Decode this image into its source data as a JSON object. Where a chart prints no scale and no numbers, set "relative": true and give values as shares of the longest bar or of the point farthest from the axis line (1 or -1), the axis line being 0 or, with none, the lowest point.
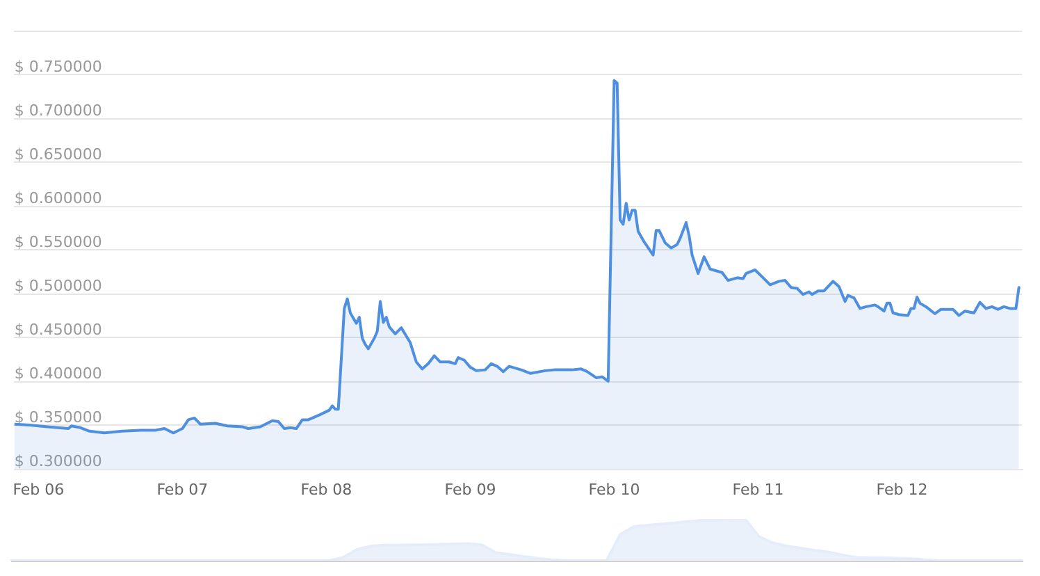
{
  "chart_data": [
    {
      "type": "area",
      "x": [
        "--02-05T20:00",
        "--02-05T22:30",
        "--02-06T01:30",
        "--02-06T05:00",
        "--02-06T05:30",
        "--02-06T07:00",
        "--02-06T08:30",
        "--02-06T11:00",
        "--02-06T14:00",
        "--02-06T17:00",
        "--02-06T19:30",
        "--02-06T21:00",
        "--02-06T22:30",
        "--02-07T00:00",
        "--02-07T01:00",
        "--02-07T02:00",
        "--02-07T03:00",
        "--02-07T05:30",
        "--02-07T07:30",
        "--02-07T10:00",
        "--02-07T11:00",
        "--02-07T13:00",
        "--02-07T15:00",
        "--02-07T16:00",
        "--02-07T17:00",
        "--02-07T18:00",
        "--02-07T19:00",
        "--02-07T20:00",
        "--02-07T21:00",
        "--02-07T23:00",
        "--02-08T00:30",
        "--02-08T01:00",
        "--02-08T01:30",
        "--02-08T02:00",
        "--02-08T03:00",
        "--02-08T03:30",
        "--02-08T04:00",
        "--02-08T05:00",
        "--02-08T05:30",
        "--02-08T06:00",
        "--02-08T06:30",
        "--02-08T07:00",
        "--02-08T08:00",
        "--02-08T08:30",
        "--02-08T09:00",
        "--02-08T09:30",
        "--02-08T10:00",
        "--02-08T10:30",
        "--02-08T11:30",
        "--02-08T12:30",
        "--02-08T14:00",
        "--02-08T15:00",
        "--02-08T16:00",
        "--02-08T17:00",
        "--02-08T18:00",
        "--02-08T19:00",
        "--02-08T20:30",
        "--02-08T21:30",
        "--02-08T22:00",
        "--02-08T23:00",
        "--02-09T00:00",
        "--02-09T01:00",
        "--02-09T02:30",
        "--02-09T03:30",
        "--02-09T04:30",
        "--02-09T05:30",
        "--02-09T06:30",
        "--02-09T08:30",
        "--02-09T10:00",
        "--02-09T12:30",
        "--02-09T14:00",
        "--02-09T17:00",
        "--02-09T18:30",
        "--02-09T19:30",
        "--02-09T21:00",
        "--02-09T22:00",
        "--02-09T23:00",
        "--02-10T00:00",
        "--02-10T00:30",
        "--02-10T01:00",
        "--02-10T01:30",
        "--02-10T02:00",
        "--02-10T02:30",
        "--02-10T03:00",
        "--02-10T03:30",
        "--02-10T04:00",
        "--02-10T05:00",
        "--02-10T06:30",
        "--02-10T07:00",
        "--02-10T07:30",
        "--02-10T08:30",
        "--02-10T09:30",
        "--02-10T10:30",
        "--02-10T11:00",
        "--02-10T12:00",
        "--02-10T12:30",
        "--02-10T13:00",
        "--02-10T14:00",
        "--02-10T15:00",
        "--02-10T16:00",
        "--02-10T17:00",
        "--02-10T18:00",
        "--02-10T19:00",
        "--02-10T20:30",
        "--02-10T21:30",
        "--02-10T22:00",
        "--02-10T23:30",
        "--02-11T01:00",
        "--02-11T02:00",
        "--02-11T03:30",
        "--02-11T04:30",
        "--02-11T05:30",
        "--02-11T06:30",
        "--02-11T07:30",
        "--02-11T08:30",
        "--02-11T09:00",
        "--02-11T10:00",
        "--02-11T11:00",
        "--02-11T12:30",
        "--02-11T13:30",
        "--02-11T14:30",
        "--02-11T15:00",
        "--02-11T16:00",
        "--02-11T17:00",
        "--02-11T18:00",
        "--02-11T19:30",
        "--02-11T20:00",
        "--02-11T21:00",
        "--02-11T21:30",
        "--02-11T22:00",
        "--02-11T22:30",
        "--02-11T23:30",
        "--02-12T01:00",
        "--02-12T01:30",
        "--02-12T02:00",
        "--02-12T02:30",
        "--02-12T03:00",
        "--02-12T04:00",
        "--02-12T05:30",
        "--02-12T06:30",
        "--02-12T08:30",
        "--02-12T09:30",
        "--02-12T10:30",
        "--02-12T12:00",
        "--02-12T13:00",
        "--02-12T14:00",
        "--02-12T15:00",
        "--02-12T16:00",
        "--02-12T17:00",
        "--02-12T18:00",
        "--02-12T19:00",
        "--02-12T19:30"
      ],
      "values": [
        0.351,
        0.35,
        0.348,
        0.346,
        0.349,
        0.347,
        0.343,
        0.341,
        0.343,
        0.344,
        0.344,
        0.346,
        0.341,
        0.346,
        0.356,
        0.358,
        0.351,
        0.352,
        0.349,
        0.348,
        0.346,
        0.348,
        0.355,
        0.354,
        0.346,
        0.347,
        0.346,
        0.356,
        0.356,
        0.362,
        0.367,
        0.372,
        0.368,
        0.368,
        0.483,
        0.494,
        0.478,
        0.466,
        0.473,
        0.449,
        0.442,
        0.437,
        0.449,
        0.457,
        0.491,
        0.467,
        0.473,
        0.462,
        0.454,
        0.461,
        0.444,
        0.422,
        0.414,
        0.42,
        0.429,
        0.422,
        0.422,
        0.42,
        0.427,
        0.424,
        0.416,
        0.412,
        0.413,
        0.42,
        0.417,
        0.411,
        0.417,
        0.413,
        0.409,
        0.412,
        0.413,
        0.413,
        0.414,
        0.411,
        0.404,
        0.405,
        0.4,
        0.743,
        0.74,
        0.584,
        0.579,
        0.603,
        0.584,
        0.595,
        0.595,
        0.571,
        0.559,
        0.544,
        0.572,
        0.572,
        0.558,
        0.552,
        0.556,
        0.563,
        0.581,
        0.566,
        0.544,
        0.523,
        0.542,
        0.528,
        0.526,
        0.524,
        0.515,
        0.518,
        0.517,
        0.523,
        0.527,
        0.517,
        0.51,
        0.514,
        0.515,
        0.507,
        0.506,
        0.499,
        0.502,
        0.499,
        0.503,
        0.503,
        0.514,
        0.508,
        0.491,
        0.498,
        0.495,
        0.483,
        0.485,
        0.487,
        0.485,
        0.48,
        0.489,
        0.489,
        0.478,
        0.476,
        0.475,
        0.483,
        0.483,
        0.496,
        0.489,
        0.485,
        0.477,
        0.482,
        0.482,
        0.475,
        0.48,
        0.478,
        0.49,
        0.483,
        0.485,
        0.482,
        0.485,
        0.483,
        0.483,
        0.507
      ],
      "color": "#4f8fe0",
      "xlim": [
        "--02-05T20:00",
        "--02-12T20:00"
      ],
      "xticks": [
        {
          "value": "--02-06",
          "label": "Feb 06"
        },
        {
          "value": "--02-07",
          "label": "Feb 07"
        },
        {
          "value": "--02-08",
          "label": "Feb 08"
        },
        {
          "value": "--02-09",
          "label": "Feb 09"
        },
        {
          "value": "--02-10",
          "label": "Feb 10"
        },
        {
          "value": "--02-11",
          "label": "Feb 11"
        },
        {
          "value": "--02-12",
          "label": "Feb 12"
        }
      ],
      "ylim": [
        0.3,
        0.8
      ],
      "yticks": [
        {
          "value": 0.3,
          "label": "$ 0.300000"
        },
        {
          "value": 0.35,
          "label": "$ 0.350000"
        },
        {
          "value": 0.4,
          "label": "$ 0.400000"
        },
        {
          "value": 0.45,
          "label": "$ 0.450000"
        },
        {
          "value": 0.5,
          "label": "$ 0.500000"
        },
        {
          "value": 0.55,
          "label": "$ 0.550000"
        },
        {
          "value": 0.6,
          "label": "$ 0.600000"
        },
        {
          "value": 0.65,
          "label": "$ 0.650000"
        },
        {
          "value": 0.7,
          "label": "$ 0.700000"
        },
        {
          "value": 0.75,
          "label": "$ 0.750000"
        },
        {
          "value": 0.8,
          "label": null
        }
      ],
      "grid": "y"
    },
    {
      "type": "area",
      "relative": true,
      "categories": [
        null,
        null,
        null,
        null,
        null,
        null,
        null,
        null,
        null,
        null,
        null,
        null,
        null,
        null,
        null,
        null,
        null,
        null,
        null,
        null,
        null,
        null,
        null,
        null,
        null,
        null,
        null,
        null,
        null,
        null,
        null,
        null,
        null,
        null,
        null,
        null,
        null,
        null,
        null,
        null,
        null,
        null,
        null,
        null,
        null,
        null,
        null,
        null,
        null,
        null,
        null,
        null,
        null,
        null,
        null,
        null,
        null,
        null,
        null,
        null,
        null,
        null,
        null,
        null,
        null,
        null,
        null,
        null,
        null,
        null,
        null,
        null,
        null,
        null
      ],
      "values": [
        0,
        0,
        0,
        0,
        0,
        0,
        0,
        0,
        0,
        0,
        0,
        0,
        0,
        0,
        0,
        0,
        0,
        0,
        0,
        0,
        0,
        0,
        0,
        0,
        0.08,
        0.27,
        0.35,
        0.37,
        0.37,
        0.38,
        0.38,
        0.39,
        0.4,
        0.41,
        0.38,
        0.19,
        0.15,
        0.1,
        0.06,
        0.02,
        0,
        0,
        0,
        0,
        0.63,
        0.82,
        0.85,
        0.88,
        0.91,
        0.94,
        0.97,
        0.98,
        0.99,
        1,
        0.58,
        0.43,
        0.35,
        0.3,
        0.25,
        0.21,
        0.14,
        0.08,
        0.07,
        0.07,
        0.06,
        0.05,
        0.02,
        0,
        0,
        0,
        0,
        0,
        0,
        0
      ],
      "color": "#e4edf9"
    }
  ]
}
